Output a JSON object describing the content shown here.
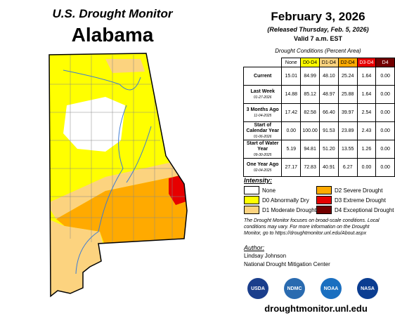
{
  "header": {
    "title": "U.S. Drought Monitor",
    "state": "Alabama",
    "date": "February 3, 2026",
    "released": "(Released Thursday, Feb. 5, 2026)",
    "valid": "Valid 7 a.m. EST"
  },
  "table": {
    "caption": "Drought Conditions (Percent Area)",
    "columns": [
      {
        "label": "None",
        "color": "#ffffff",
        "text": "#000000"
      },
      {
        "label": "D0-D4",
        "color": "#ffff00",
        "text": "#000000"
      },
      {
        "label": "D1-D4",
        "color": "#fcd37f",
        "text": "#000000"
      },
      {
        "label": "D2-D4",
        "color": "#ffaa00",
        "text": "#000000"
      },
      {
        "label": "D3-D4",
        "color": "#e60000",
        "text": "#ffffff"
      },
      {
        "label": "D4",
        "color": "#730000",
        "text": "#ffffff"
      }
    ],
    "rows": [
      {
        "label": "Current",
        "date": null,
        "values": [
          "15.01",
          "84.99",
          "48.10",
          "25.24",
          "1.64",
          "0.00"
        ]
      },
      {
        "label": "Last Week",
        "date": "01-27-2026",
        "values": [
          "14.88",
          "85.12",
          "48.97",
          "25.88",
          "1.64",
          "0.00"
        ]
      },
      {
        "label": "3 Months Ago",
        "date": "11-04-2025",
        "values": [
          "17.42",
          "82.58",
          "66.40",
          "39.97",
          "2.54",
          "0.00"
        ]
      },
      {
        "label": "Start of Calendar Year",
        "date": "01-06-2026",
        "values": [
          "0.00",
          "100.00",
          "91.53",
          "23.89",
          "2.43",
          "0.00"
        ]
      },
      {
        "label": "Start of Water Year",
        "date": "09-30-2025",
        "values": [
          "5.19",
          "94.81",
          "51.20",
          "13.55",
          "1.26",
          "0.00"
        ]
      },
      {
        "label": "One Year Ago",
        "date": "02-04-2025",
        "values": [
          "27.17",
          "72.83",
          "40.91",
          "6.27",
          "0.00",
          "0.00"
        ]
      }
    ]
  },
  "legend": {
    "title": "Intensity:",
    "items": [
      {
        "label": "None",
        "color": "#ffffff"
      },
      {
        "label": "D0 Abnormally Dry",
        "color": "#ffff00"
      },
      {
        "label": "D1 Moderate Drought",
        "color": "#fcd37f"
      },
      {
        "label": "D2 Severe Drought",
        "color": "#ffaa00"
      },
      {
        "label": "D3 Extreme Drought",
        "color": "#e60000"
      },
      {
        "label": "D4 Exceptional Drought",
        "color": "#730000"
      }
    ]
  },
  "note": "The Drought Monitor focuses on broad-scale conditions. Local conditions may vary. For more information on the Drought Monitor, go to https://droughtmonitor.unl.edu/About.aspx",
  "author": {
    "title": "Author:",
    "name": "Lindsay Johnson",
    "org": "National Drought Mitigation Center"
  },
  "logos": [
    "USDA",
    "NDMC",
    "NOAA",
    "NASA"
  ],
  "url": "droughtmonitor.unl.edu"
}
